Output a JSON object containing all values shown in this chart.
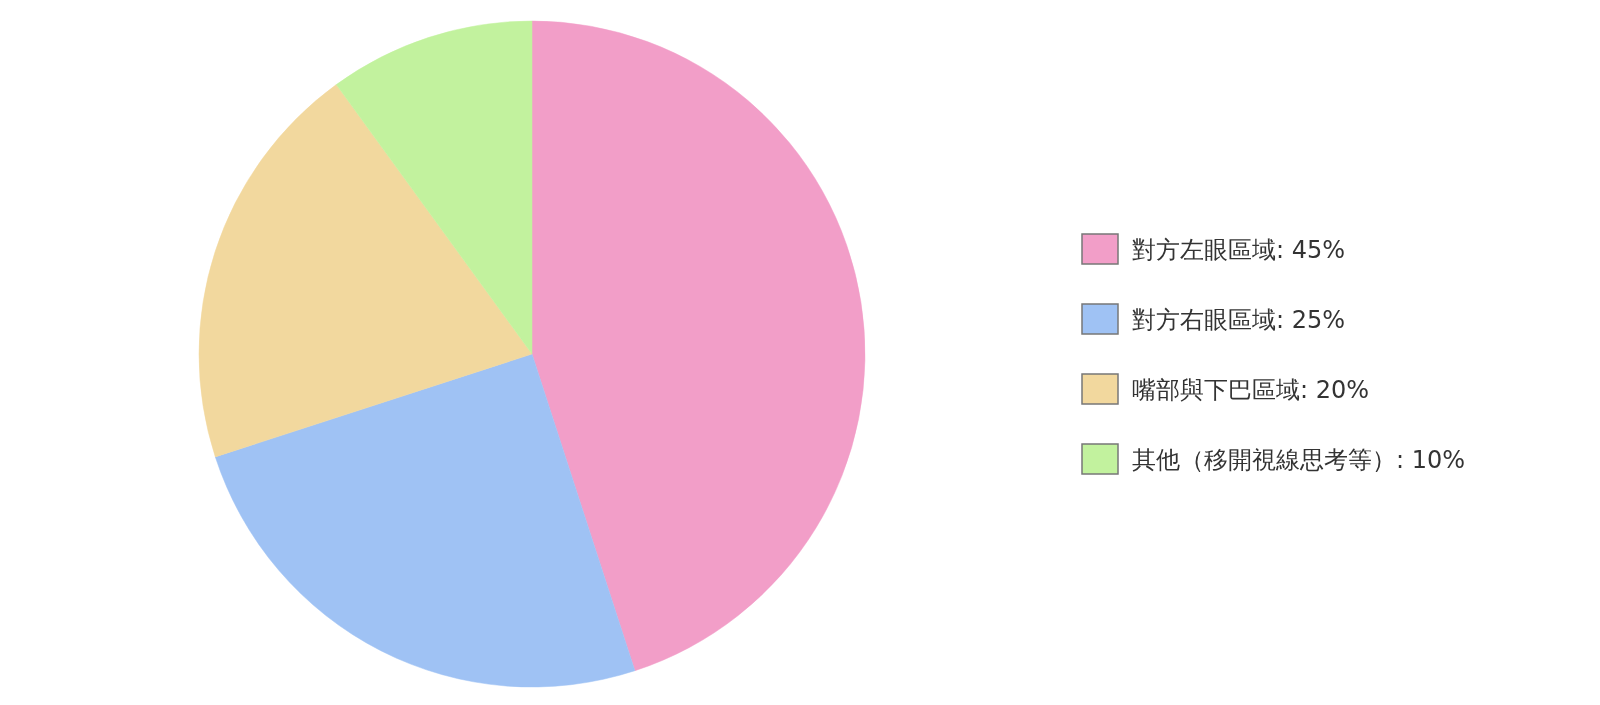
{
  "chart_data": {
    "type": "pie",
    "legend": "right",
    "categories": [
      "對方左眼區域: 45%",
      "對方右眼區域: 25%",
      "嘴部與下巴區域: 20%",
      "其他（移開視線思考等）: 10%"
    ],
    "values": [
      45,
      25,
      20,
      10
    ],
    "colors": [
      "#f29ec8",
      "#9fc2f4",
      "#f2d89e",
      "#c2f29e"
    ]
  }
}
